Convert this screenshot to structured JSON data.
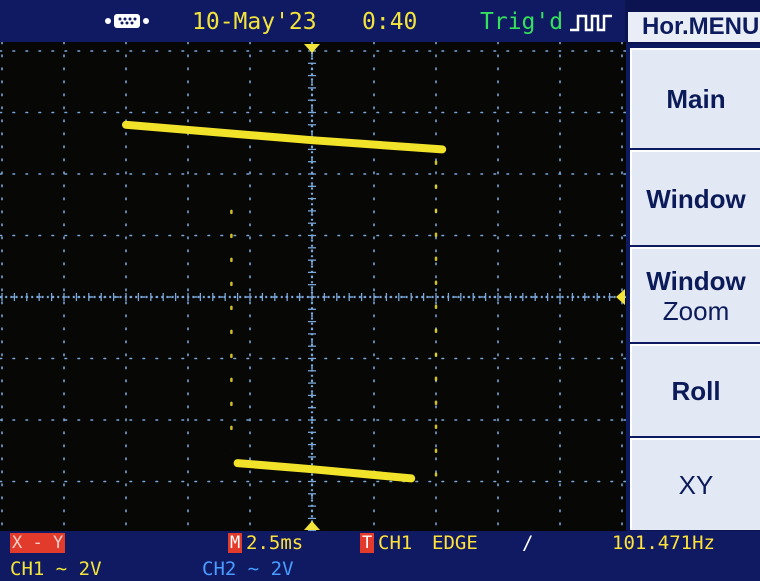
{
  "status_bar": {
    "usb_icon": "usb-connector-icon",
    "date": "10-May'23",
    "time": "0:40",
    "trigger_state": "Trig'd",
    "trigger_icon": "rising-edge-pulse-icon"
  },
  "menu": {
    "title": "Hor.MENU",
    "items": [
      {
        "label": "Main"
      },
      {
        "label": "Window"
      },
      {
        "label": "Window",
        "label2": "Zoom"
      },
      {
        "label": "Roll"
      },
      {
        "label": "XY"
      }
    ]
  },
  "bottom_bar": {
    "mode": "X - Y",
    "timebase_badge": "M",
    "timebase": "2.5ms",
    "trigger_badge": "T",
    "trigger_source": "CH1",
    "trigger_type": "EDGE",
    "trigger_slope": "/",
    "frequency": "101.471Hz",
    "ch1": "CH1 ∼ 2V",
    "ch2": "CH2 ∼ 2V"
  },
  "colors": {
    "trace": "#f1e22a",
    "grid": "#7aa6d8",
    "bezel": "#0f1a63",
    "ch1": "#f2e43a",
    "ch2": "#4a9cff",
    "trigger": "#34e05c"
  },
  "chart_data": {
    "type": "scatter",
    "mode": "XY",
    "grid": true,
    "series": [
      {
        "points": [
          [
            -3.0,
            2.8
          ],
          [
            0.0,
            2.55
          ],
          [
            2.1,
            2.4
          ]
        ]
      },
      {
        "points": [
          [
            -1.2,
            -2.7
          ],
          [
            0.0,
            -2.8
          ],
          [
            1.6,
            -2.95
          ]
        ]
      },
      {
        "points": [
          [
            -1.3,
            1.4
          ],
          [
            -1.3,
            -2.5
          ]
        ]
      },
      {
        "points": [
          [
            2.0,
            2.2
          ],
          [
            2.0,
            -2.9
          ]
        ]
      }
    ]
  }
}
